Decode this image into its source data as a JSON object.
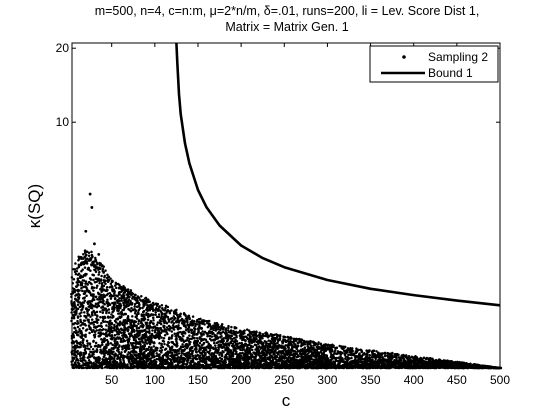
{
  "chart_data": {
    "type": "scatter",
    "title": [
      "m=500, n=4, c=n:m, μ=2*n/m, δ=.01, runs=200, li = Lev. Score Dist 1,",
      "Matrix = Matrix Gen. 1"
    ],
    "xlabel": "c",
    "ylabel": "κ(SQ)",
    "xlim": [
      4,
      500
    ],
    "ylim": [
      1,
      21
    ],
    "yscale": "log",
    "xticks": [
      50,
      100,
      150,
      200,
      250,
      300,
      350,
      400,
      450,
      500
    ],
    "yticks": [
      10,
      20
    ],
    "legend_position": "top-right",
    "grid": false,
    "series": [
      {
        "name": "Sampling 2",
        "style": "points",
        "color": "#000000",
        "envelope": {
          "c": [
            4,
            10,
            20,
            30,
            40,
            50,
            60,
            80,
            100,
            150,
            200,
            250,
            300,
            350,
            400,
            450,
            500
          ],
          "upper": [
            2.4,
            2.8,
            3.1,
            2.9,
            2.6,
            2.3,
            2.2,
            2.0,
            1.85,
            1.6,
            1.45,
            1.35,
            1.25,
            1.18,
            1.12,
            1.06,
            1.0
          ],
          "lower": [
            1.0,
            1.0,
            1.0,
            1.0,
            1.0,
            1.0,
            1.0,
            1.0,
            1.0,
            1.0,
            1.0,
            1.0,
            1.0,
            1.0,
            1.0,
            1.0,
            1.0
          ]
        },
        "outliers": [
          [
            20,
            3.6
          ],
          [
            25,
            5.1
          ],
          [
            27,
            4.5
          ],
          [
            30,
            3.2
          ],
          [
            35,
            2.9
          ]
        ]
      },
      {
        "name": "Bound 1",
        "style": "line",
        "color": "#000000",
        "x": [
          125,
          126,
          128,
          130,
          135,
          140,
          150,
          160,
          175,
          200,
          225,
          250,
          300,
          350,
          400,
          450,
          500
        ],
        "y": [
          21,
          17.5,
          13.0,
          10.8,
          8.2,
          6.8,
          5.3,
          4.5,
          3.8,
          3.15,
          2.8,
          2.57,
          2.28,
          2.1,
          1.98,
          1.88,
          1.8
        ]
      }
    ]
  }
}
